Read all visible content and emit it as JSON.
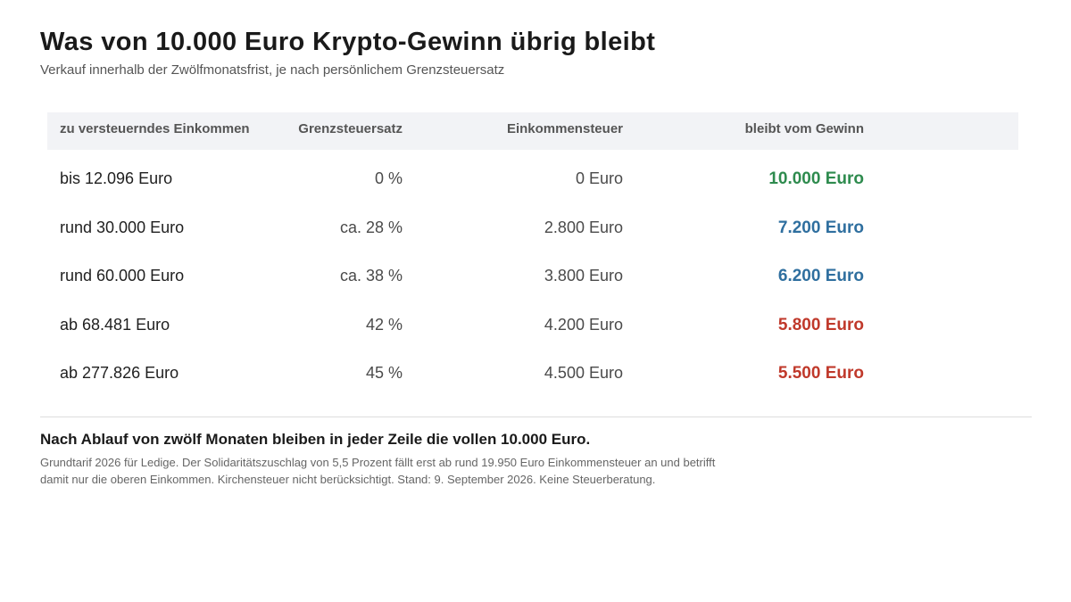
{
  "header": {
    "title": "Was von 10.000 Euro Krypto-Gewinn übrig bleibt",
    "subtitle": "Verkauf innerhalb der Zwölfmonatsfrist, je nach persönlichem Grenzsteuersatz"
  },
  "chart_data": {
    "type": "table",
    "columns": [
      "zu versteuerndes Einkommen",
      "Grenzsteuersatz",
      "Einkommensteuer",
      "bleibt vom Gewinn"
    ],
    "rows": [
      [
        "bis 12.096 Euro",
        "0 %",
        "0 Euro",
        "10.000 Euro"
      ],
      [
        "rund 30.000 Euro",
        "ca. 28 %",
        "2.800 Euro",
        "7.200 Euro"
      ],
      [
        "rund 60.000 Euro",
        "ca. 38 %",
        "3.800 Euro",
        "6.200 Euro"
      ],
      [
        "ab 68.481 Euro",
        "42 %",
        "4.200 Euro",
        "5.800 Euro"
      ],
      [
        "ab 277.826 Euro",
        "45 %",
        "4.500 Euro",
        "5.500 Euro"
      ]
    ],
    "row_colors": [
      "#2e8b4e",
      "#2f6f9f",
      "#2f6f9f",
      "#c0392b",
      "#c0392b"
    ]
  },
  "footer": {
    "note": "Nach Ablauf von zwölf Monaten bleiben in jeder Zeile die vollen 10.000 Euro.",
    "footnote": "Grundtarif 2026 für Ledige. Der Solidaritätszuschlag von 5,5 Prozent fällt erst ab rund 19.950 Euro Einkommensteuer an und betrifft damit nur die oberen Einkommen. Kirchensteuer nicht berücksichtigt. Stand: 9. September 2026. Keine Steuerberatung."
  }
}
